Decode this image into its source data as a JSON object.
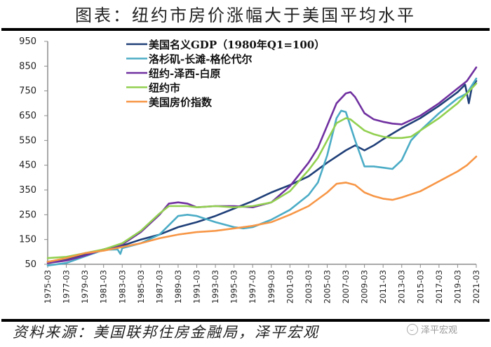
{
  "title": "图表：纽约市房价涨幅大于美国平均水平",
  "source": "资料来源：美国联邦住房金融局，泽平宏观",
  "watermark": "泽平宏观",
  "chart_data": {
    "type": "line",
    "title": "图表：纽约市房价涨幅大于美国平均水平",
    "xlabel": "",
    "ylabel": "",
    "ylim": [
      50,
      950
    ],
    "yticks": [
      50,
      150,
      250,
      350,
      450,
      550,
      650,
      750,
      850,
      950
    ],
    "xlim": [
      1975.0,
      2021.0
    ],
    "xtick_labels": [
      "1975-03",
      "1977-03",
      "1979-03",
      "1981-03",
      "1983-03",
      "1985-03",
      "1987-03",
      "1989-03",
      "1991-03",
      "1993-03",
      "1995-03",
      "1997-03",
      "1999-03",
      "2001-03",
      "2003-03",
      "2005-03",
      "2007-03",
      "2009-03",
      "2011-03",
      "2013-03",
      "2015-03",
      "2017-03",
      "2019-03",
      "2021-03"
    ],
    "grid": false,
    "legend_position": "top-left",
    "series": [
      {
        "name": "美国名义GDP（1980年Q1=100）",
        "color": "#1f3f78",
        "x": [
          1975,
          1977,
          1979,
          1981,
          1983,
          1985,
          1987,
          1989,
          1991,
          1993,
          1995,
          1997,
          1999,
          2001,
          2003,
          2005,
          2007,
          2008,
          2009,
          2010,
          2011,
          2013,
          2015,
          2017,
          2019,
          2019.8,
          2020.2,
          2020.5,
          2021
        ],
        "y": [
          60,
          72,
          88,
          110,
          125,
          150,
          170,
          200,
          220,
          245,
          275,
          305,
          340,
          370,
          405,
          460,
          510,
          530,
          510,
          530,
          555,
          600,
          640,
          690,
          745,
          775,
          700,
          760,
          790
        ]
      },
      {
        "name": "洛杉矶-长滩-格伦代尔",
        "color": "#4bacc6",
        "x": [
          1975,
          1977,
          1979,
          1981,
          1982.5,
          1982.8,
          1983,
          1985,
          1987,
          1989,
          1990,
          1991,
          1993,
          1995,
          1996,
          1997,
          1999,
          2001,
          2003,
          2004,
          2005,
          2006,
          2006.5,
          2007,
          2008,
          2009,
          2010,
          2011,
          2012,
          2013,
          2014,
          2015,
          2017,
          2019,
          2020,
          2021
        ],
        "y": [
          45,
          55,
          82,
          108,
          110,
          92,
          115,
          135,
          170,
          245,
          250,
          245,
          220,
          200,
          195,
          200,
          230,
          270,
          330,
          380,
          490,
          640,
          670,
          665,
          550,
          445,
          445,
          440,
          435,
          470,
          550,
          590,
          660,
          720,
          740,
          800
        ]
      },
      {
        "name": "纽约-泽西-白原",
        "color": "#7030a0",
        "x": [
          1975,
          1977,
          1979,
          1981,
          1983,
          1985,
          1987,
          1988,
          1989,
          1990,
          1991,
          1993,
          1995,
          1997,
          1999,
          2001,
          2003,
          2004,
          2005,
          2006,
          2007,
          2007.5,
          2008,
          2009,
          2010,
          2011,
          2012,
          2013,
          2015,
          2017,
          2019,
          2020,
          2021
        ],
        "y": [
          55,
          65,
          85,
          110,
          130,
          180,
          250,
          295,
          300,
          295,
          280,
          285,
          285,
          280,
          300,
          365,
          460,
          520,
          610,
          700,
          740,
          745,
          725,
          660,
          635,
          625,
          618,
          615,
          650,
          700,
          760,
          790,
          845
        ]
      },
      {
        "name": "纽约市",
        "color": "#92d050",
        "x": [
          1975,
          1977,
          1979,
          1981,
          1983,
          1985,
          1987,
          1988,
          1989,
          1990,
          1991,
          1993,
          1995,
          1997,
          1999,
          2001,
          2003,
          2004,
          2005,
          2006,
          2007,
          2007.5,
          2008,
          2009,
          2010,
          2011,
          2012,
          2013,
          2014,
          2015,
          2017,
          2019,
          2020,
          2021
        ],
        "y": [
          75,
          80,
          95,
          110,
          135,
          185,
          255,
          285,
          285,
          285,
          280,
          285,
          280,
          285,
          300,
          345,
          430,
          480,
          550,
          620,
          640,
          635,
          620,
          590,
          575,
          565,
          560,
          560,
          565,
          590,
          640,
          700,
          740,
          780
        ]
      },
      {
        "name": "美国房价指数",
        "color": "#f79646",
        "x": [
          1975,
          1977,
          1979,
          1981,
          1983,
          1985,
          1987,
          1989,
          1991,
          1993,
          1995,
          1997,
          1999,
          2001,
          2003,
          2005,
          2006,
          2007,
          2008,
          2009,
          2010,
          2011,
          2012,
          2013,
          2015,
          2017,
          2019,
          2020,
          2021
        ],
        "y": [
          60,
          75,
          95,
          105,
          120,
          135,
          155,
          170,
          180,
          185,
          195,
          205,
          220,
          250,
          285,
          340,
          375,
          380,
          370,
          340,
          325,
          315,
          310,
          320,
          345,
          385,
          425,
          450,
          485
        ]
      }
    ]
  }
}
